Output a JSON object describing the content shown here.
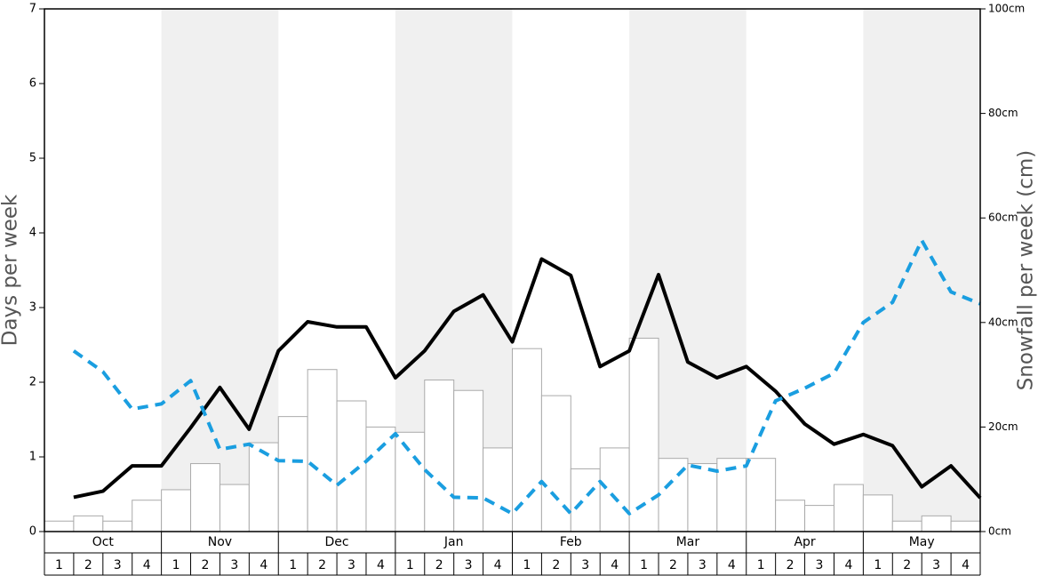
{
  "chart_data": {
    "type": "bar",
    "y_label": "Days per week",
    "y2_label": "Snowfall per week (cm)",
    "months": [
      "Oct",
      "Nov",
      "Dec",
      "Jan",
      "Feb",
      "Mar",
      "Apr",
      "May"
    ],
    "categories": [
      "1",
      "2",
      "3",
      "4",
      "1",
      "2",
      "3",
      "4",
      "1",
      "2",
      "3",
      "4",
      "1",
      "2",
      "3",
      "4",
      "1",
      "2",
      "3",
      "4",
      "1",
      "2",
      "3",
      "4",
      "1",
      "2",
      "3",
      "4",
      "1",
      "2",
      "3",
      "4"
    ],
    "ylim": [
      0,
      7
    ],
    "yticks": [
      0,
      1,
      2,
      3,
      4,
      5,
      6,
      7
    ],
    "y2lim": [
      0,
      100
    ],
    "y2ticks": [
      {
        "value": 0,
        "label": "0cm"
      },
      {
        "value": 20,
        "label": "20cm"
      },
      {
        "value": 40,
        "label": "40cm"
      },
      {
        "value": 60,
        "label": "60cm"
      },
      {
        "value": 80,
        "label": "80cm"
      },
      {
        "value": 100,
        "label": "100cm"
      }
    ],
    "shading": "#f0f0f0",
    "series": [
      {
        "type": "bar",
        "axis": "y2",
        "color": "#ffffff",
        "stroke": "#aaaaaa",
        "values": [
          2,
          3,
          2,
          6,
          8,
          13,
          9,
          17,
          22,
          31,
          25,
          20,
          19,
          29,
          27,
          16,
          35,
          26,
          12,
          16,
          37,
          14,
          13,
          14,
          14,
          6,
          5,
          9,
          7,
          2,
          3,
          2
        ]
      },
      {
        "type": "line",
        "color": "#000000",
        "style": "solid",
        "values": [
          0.46,
          0.54,
          0.88,
          0.88,
          1.39,
          1.93,
          1.37,
          2.42,
          2.81,
          2.74,
          2.74,
          2.06,
          2.42,
          2.95,
          3.17,
          2.54,
          3.65,
          3.43,
          2.21,
          2.42,
          3.44,
          2.27,
          2.06,
          2.21,
          1.88,
          1.44,
          1.17,
          1.3,
          1.15,
          0.6,
          0.88,
          0.45
        ]
      },
      {
        "type": "line",
        "color": "#1a9ee0",
        "style": "dashed",
        "values": [
          2.42,
          2.14,
          1.64,
          1.71,
          2.02,
          1.1,
          1.17,
          0.95,
          0.94,
          0.62,
          0.94,
          1.31,
          0.83,
          0.46,
          0.45,
          0.24,
          0.67,
          0.24,
          0.67,
          0.24,
          0.49,
          0.89,
          0.81,
          0.88,
          1.75,
          1.92,
          2.12,
          2.8,
          3.07,
          3.9,
          3.21,
          3.05
        ]
      }
    ]
  }
}
